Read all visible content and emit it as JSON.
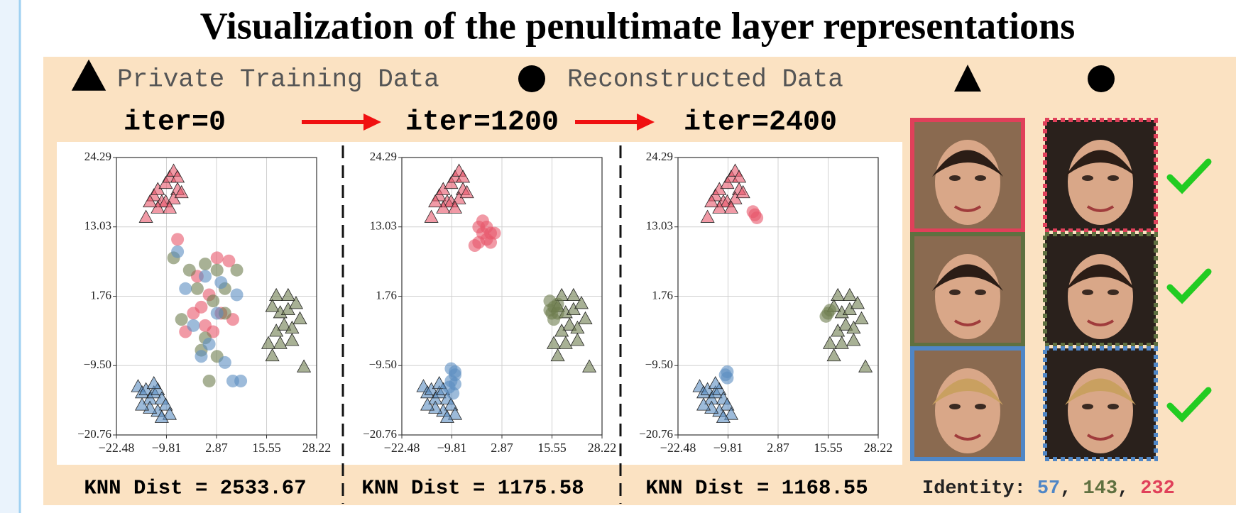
{
  "title": "Visualization of the penultimate layer representations",
  "legend": [
    {
      "marker": "triangle",
      "label": "Private Training Data"
    },
    {
      "marker": "circle",
      "label": "Reconstructed Data"
    }
  ],
  "identity": {
    "label": "Identity:",
    "separator": ",",
    "ids": [
      {
        "text": "57",
        "color": "#4f86c6"
      },
      {
        "text": "143",
        "color": "#5f7040"
      },
      {
        "text": "232",
        "color": "#e0405a"
      }
    ]
  },
  "chart_data": [
    {
      "type": "scatter",
      "title": "iter=0",
      "caption": "KNN Dist = 2533.67",
      "grid": true,
      "xlim": [
        -22.48,
        28.22
      ],
      "ylim": [
        -20.76,
        24.29
      ],
      "xticks": [
        {
          "value": -22.48,
          "label": "−22.48"
        },
        {
          "value": -9.81,
          "label": "−9.81"
        },
        2.87,
        15.55,
        28.22
      ],
      "yticks": [
        {
          "value": -20.76,
          "label": "−20.76"
        },
        {
          "value": -9.5,
          "label": "−9.50"
        },
        1.76,
        13.03,
        24.29
      ],
      "series": [
        {
          "marker": "triangle",
          "color": "#e8576a",
          "x": [
            -13,
            -12,
            -11,
            -10,
            -9,
            -8,
            -7,
            -7,
            -10,
            -12,
            -14,
            -15,
            -8,
            -6,
            -9
          ],
          "values": [
            18,
            19,
            17,
            20,
            21,
            22,
            21,
            19,
            17,
            16,
            17,
            14.5,
            17.5,
            18.5,
            16
          ]
        },
        {
          "marker": "triangle",
          "color": "#6e7d4e",
          "x": [
            18,
            21,
            17,
            19,
            21,
            23,
            20,
            18,
            22,
            24,
            16,
            19,
            22,
            17,
            25
          ],
          "values": [
            1.8,
            1.8,
            0,
            -1,
            -0.5,
            0.5,
            -3,
            -4,
            -3.5,
            -2,
            -6,
            -6,
            -5.5,
            -8,
            -9.8
          ]
        },
        {
          "marker": "triangle",
          "color": "#5b8ec2",
          "x": [
            -17,
            -16,
            -15,
            -14,
            -13,
            -12,
            -11,
            -10,
            -12,
            -14,
            -16,
            -9,
            -11,
            -13
          ],
          "values": [
            -13,
            -14,
            -13.5,
            -15,
            -14,
            -13.5,
            -15,
            -16,
            -17,
            -16.5,
            -16,
            -17.5,
            -18,
            -12.5
          ]
        },
        {
          "marker": "circle",
          "color": "#e8576a",
          "x": [
            -7,
            3,
            6,
            -2,
            1,
            -3,
            0,
            4,
            7,
            -5,
            2,
            -1
          ],
          "values": [
            11,
            8,
            7.5,
            5,
            2,
            -1,
            -3,
            -1,
            -2,
            -4,
            -4,
            0
          ]
        },
        {
          "marker": "circle",
          "color": "#6e7d4e",
          "x": [
            -8,
            -4,
            0,
            3,
            8,
            -2,
            2,
            5,
            -6,
            0,
            3,
            -1,
            1,
            5
          ],
          "values": [
            8,
            6,
            7,
            6,
            6,
            3,
            1,
            3,
            -2,
            -5,
            -8,
            -7,
            -12,
            -1
          ]
        },
        {
          "marker": "circle",
          "color": "#5b8ec2",
          "x": [
            -7,
            -5,
            0,
            4,
            8,
            -3,
            1,
            5,
            7,
            9,
            -1,
            3
          ],
          "values": [
            9,
            3,
            5,
            4,
            2,
            -3,
            -6,
            -9,
            -12,
            -12,
            -8,
            -1
          ]
        }
      ]
    },
    {
      "type": "scatter",
      "title": "iter=1200",
      "caption": "KNN Dist = 1175.58",
      "grid": true,
      "xlim": [
        -22.48,
        28.22
      ],
      "ylim": [
        -20.76,
        24.29
      ],
      "xticks": [
        {
          "value": -22.48,
          "label": "−22.48"
        },
        {
          "value": -9.81,
          "label": "−9.81"
        },
        2.87,
        15.55,
        28.22
      ],
      "yticks": [
        {
          "value": -20.76,
          "label": "−20.76"
        },
        {
          "value": -9.5,
          "label": "−9.50"
        },
        1.76,
        13.03,
        24.29
      ],
      "series": [
        {
          "marker": "triangle",
          "color": "#e8576a",
          "x": [
            -13,
            -12,
            -11,
            -10,
            -9,
            -8,
            -7,
            -7,
            -10,
            -12,
            -14,
            -15,
            -8,
            -6,
            -9
          ],
          "values": [
            18,
            19,
            17,
            20,
            21,
            22,
            21,
            19,
            17,
            16,
            17,
            14.5,
            17.5,
            18.5,
            16
          ]
        },
        {
          "marker": "triangle",
          "color": "#6e7d4e",
          "x": [
            18,
            21,
            17,
            19,
            21,
            23,
            20,
            18,
            22,
            24,
            16,
            19,
            22,
            17,
            25
          ],
          "values": [
            1.8,
            1.8,
            0,
            -1,
            -0.5,
            0.5,
            -3,
            -4,
            -3.5,
            -2,
            -6,
            -6,
            -5.5,
            -8,
            -9.8
          ]
        },
        {
          "marker": "triangle",
          "color": "#5b8ec2",
          "x": [
            -17,
            -16,
            -15,
            -14,
            -13,
            -12,
            -11,
            -10,
            -12,
            -14,
            -16,
            -9,
            -11,
            -13
          ],
          "values": [
            -13,
            -14,
            -13.5,
            -15,
            -14,
            -13.5,
            -15,
            -16,
            -17,
            -16.5,
            -16,
            -17.5,
            -18,
            -12.5
          ]
        },
        {
          "marker": "circle",
          "color": "#e8576a",
          "x": [
            -3,
            -2,
            -1,
            0,
            -1,
            -3,
            -4,
            0,
            -2,
            1
          ],
          "values": [
            13,
            12,
            11,
            12,
            13,
            10.5,
            10,
            10.5,
            14,
            12
          ]
        },
        {
          "marker": "circle",
          "color": "#6e7d4e",
          "x": [
            15,
            16,
            15.5,
            17,
            16,
            15,
            17
          ],
          "values": [
            1,
            0,
            -1,
            0.5,
            -2,
            -0.5,
            -1
          ]
        },
        {
          "marker": "circle",
          "color": "#5b8ec2",
          "x": [
            -10,
            -9,
            -10,
            -9,
            -10.5,
            -9,
            -9.5
          ],
          "values": [
            -10,
            -11,
            -12,
            -10.5,
            -13,
            -12.5,
            -14
          ]
        }
      ]
    },
    {
      "type": "scatter",
      "title": "iter=2400",
      "caption": "KNN Dist = 1168.55",
      "grid": true,
      "xlim": [
        -22.48,
        28.22
      ],
      "ylim": [
        -20.76,
        24.29
      ],
      "xticks": [
        {
          "value": -22.48,
          "label": "−22.48"
        },
        {
          "value": -9.81,
          "label": "−9.81"
        },
        2.87,
        15.55,
        28.22
      ],
      "yticks": [
        {
          "value": -20.76,
          "label": "−20.76"
        },
        {
          "value": -9.5,
          "label": "−9.50"
        },
        1.76,
        13.03,
        24.29
      ],
      "series": [
        {
          "marker": "triangle",
          "color": "#e8576a",
          "x": [
            -13,
            -12,
            -11,
            -10,
            -9,
            -8,
            -7,
            -7,
            -10,
            -12,
            -14,
            -15,
            -8,
            -6,
            -9
          ],
          "values": [
            18,
            19,
            17,
            20,
            21,
            22,
            21,
            19,
            17,
            16,
            17,
            14.5,
            17.5,
            18.5,
            16
          ]
        },
        {
          "marker": "triangle",
          "color": "#6e7d4e",
          "x": [
            18,
            21,
            17,
            19,
            21,
            23,
            20,
            18,
            22,
            24,
            16,
            19,
            22,
            17,
            25
          ],
          "values": [
            1.8,
            1.8,
            0,
            -1,
            -0.5,
            0.5,
            -3,
            -4,
            -3.5,
            -2,
            -6,
            -6,
            -5.5,
            -8,
            -9.8
          ]
        },
        {
          "marker": "triangle",
          "color": "#5b8ec2",
          "x": [
            -17,
            -16,
            -15,
            -14,
            -13,
            -12,
            -11,
            -10,
            -12,
            -14,
            -16,
            -9,
            -11,
            -13
          ],
          "values": [
            -13,
            -14,
            -13.5,
            -15,
            -14,
            -13.5,
            -15,
            -16,
            -17,
            -16.5,
            -16,
            -17.5,
            -18,
            -12.5
          ]
        },
        {
          "marker": "circle",
          "color": "#e8576a",
          "x": [
            -3,
            -2.5,
            -3.5
          ],
          "values": [
            15,
            14.5,
            15.5
          ]
        },
        {
          "marker": "circle",
          "color": "#6e7d4e",
          "x": [
            15.5,
            16,
            15
          ],
          "values": [
            -1,
            -0.5,
            -1.5
          ]
        },
        {
          "marker": "circle",
          "color": "#5b8ec2",
          "x": [
            -10,
            -10,
            -10.5
          ],
          "values": [
            -10.5,
            -11.5,
            -11
          ]
        }
      ]
    }
  ]
}
